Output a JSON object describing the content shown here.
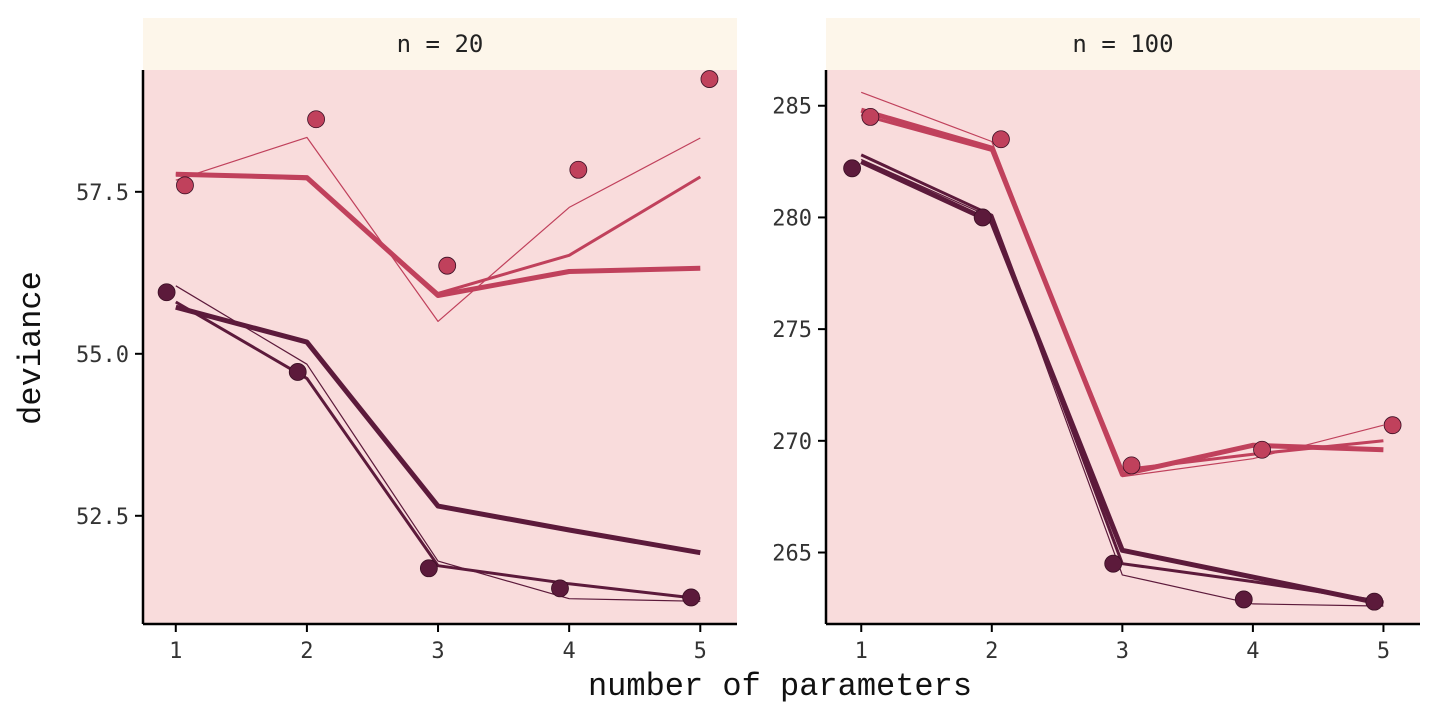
{
  "chart_data": {
    "type": "line",
    "xlabel": "number of parameters",
    "ylabel": "deviance",
    "colors": {
      "in_sample": "#5c1a3b",
      "out_sample": "#c0415c",
      "panel_bg": "#f9dcdc",
      "strip_bg": "#fdf6ea"
    },
    "panels": [
      {
        "strip": "n = 20",
        "xlim": [
          0.75,
          5.28
        ],
        "ylim": [
          50.83,
          59.38
        ],
        "x_ticks": [
          1,
          2,
          3,
          4,
          5
        ],
        "x_tick_labels": [
          "1",
          "2",
          "3",
          "4",
          "5"
        ],
        "y_ticks": [
          52.5,
          55.0,
          57.5
        ],
        "y_tick_labels": [
          "52.5",
          "55.0",
          "57.5"
        ],
        "series": [
          {
            "name": "in-sample points",
            "kind": "points",
            "group": "in_sample",
            "x": [
              0.93,
              1.93,
              2.93,
              3.93,
              4.93
            ],
            "y": [
              55.95,
              54.72,
              51.69,
              51.38,
              51.24
            ]
          },
          {
            "name": "out-of-sample points",
            "kind": "points",
            "group": "out_sample",
            "x": [
              1.07,
              2.07,
              3.07,
              4.07,
              5.07
            ],
            "y": [
              57.6,
              58.62,
              56.36,
              57.84,
              59.24
            ]
          },
          {
            "name": "in-sample line 1",
            "kind": "line",
            "group": "in_sample",
            "width": 5,
            "x": [
              1,
              2,
              3,
              4,
              5
            ],
            "y": [
              55.72,
              55.18,
              52.65,
              52.28,
              51.93
            ]
          },
          {
            "name": "in-sample line 2",
            "kind": "line",
            "group": "in_sample",
            "width": 3,
            "x": [
              1,
              2,
              3,
              4,
              5
            ],
            "y": [
              55.8,
              54.62,
              51.73,
              51.45,
              51.22
            ]
          },
          {
            "name": "in-sample line 3",
            "kind": "line",
            "group": "in_sample",
            "width": 1.2,
            "x": [
              1,
              2,
              3,
              4,
              5
            ],
            "y": [
              56.05,
              54.84,
              51.8,
              51.22,
              51.18
            ]
          },
          {
            "name": "out-of-sample line 1",
            "kind": "line",
            "group": "out_sample",
            "width": 5,
            "x": [
              1,
              2,
              3,
              4,
              5
            ],
            "y": [
              57.77,
              57.72,
              55.9,
              56.27,
              56.32
            ]
          },
          {
            "name": "out-of-sample line 2",
            "kind": "line",
            "group": "out_sample",
            "width": 3,
            "x": [
              1,
              2,
              3,
              4,
              5
            ],
            "y": [
              57.77,
              57.7,
              55.93,
              56.52,
              57.73
            ]
          },
          {
            "name": "out-of-sample line 3",
            "kind": "line",
            "group": "out_sample",
            "width": 1.2,
            "x": [
              1,
              2,
              3,
              4,
              5
            ],
            "y": [
              57.68,
              58.34,
              55.5,
              57.26,
              58.33
            ]
          }
        ]
      },
      {
        "strip": "n = 100",
        "xlim": [
          0.73,
          5.28
        ],
        "ylim": [
          261.8,
          286.6
        ],
        "x_ticks": [
          1,
          2,
          3,
          4,
          5
        ],
        "x_tick_labels": [
          "1",
          "2",
          "3",
          "4",
          "5"
        ],
        "y_ticks": [
          265,
          270,
          275,
          280,
          285
        ],
        "y_tick_labels": [
          "265",
          "270",
          "275",
          "280",
          "285"
        ],
        "series": [
          {
            "name": "in-sample points",
            "kind": "points",
            "group": "in_sample",
            "x": [
              0.93,
              1.93,
              2.93,
              3.93,
              4.93
            ],
            "y": [
              282.2,
              280.0,
              264.5,
              262.9,
              262.8
            ]
          },
          {
            "name": "out-of-sample points",
            "kind": "points",
            "group": "out_sample",
            "x": [
              1.07,
              2.07,
              3.07,
              4.07,
              5.07
            ],
            "y": [
              284.5,
              283.5,
              268.9,
              269.6,
              270.7
            ]
          },
          {
            "name": "in-sample line 1",
            "kind": "line",
            "group": "in_sample",
            "width": 5,
            "x": [
              1,
              2,
              3,
              4,
              5
            ],
            "y": [
              282.5,
              279.8,
              265.1,
              263.9,
              262.7
            ]
          },
          {
            "name": "in-sample line 2",
            "kind": "line",
            "group": "in_sample",
            "width": 3,
            "x": [
              1,
              2,
              3,
              4,
              5
            ],
            "y": [
              282.8,
              280.1,
              264.5,
              263.7,
              262.8
            ]
          },
          {
            "name": "in-sample line 3",
            "kind": "line",
            "group": "in_sample",
            "width": 1.2,
            "x": [
              1,
              2,
              3,
              4,
              5
            ],
            "y": [
              282.6,
              280.0,
              264.0,
              262.7,
              262.6
            ]
          },
          {
            "name": "out-of-sample line 1",
            "kind": "line",
            "group": "out_sample",
            "width": 5,
            "x": [
              1,
              2,
              3,
              4,
              5
            ],
            "y": [
              284.8,
              283.1,
              268.5,
              269.8,
              269.6
            ]
          },
          {
            "name": "out-of-sample line 2",
            "kind": "line",
            "group": "out_sample",
            "width": 3,
            "x": [
              1,
              2,
              3,
              4,
              5
            ],
            "y": [
              284.6,
              283.0,
              268.7,
              269.4,
              270.0
            ]
          },
          {
            "name": "out-of-sample line 3",
            "kind": "line",
            "group": "out_sample",
            "width": 1.2,
            "x": [
              1,
              2,
              3,
              4,
              5
            ],
            "y": [
              285.6,
              283.4,
              268.4,
              269.2,
              270.7
            ]
          }
        ]
      }
    ]
  }
}
